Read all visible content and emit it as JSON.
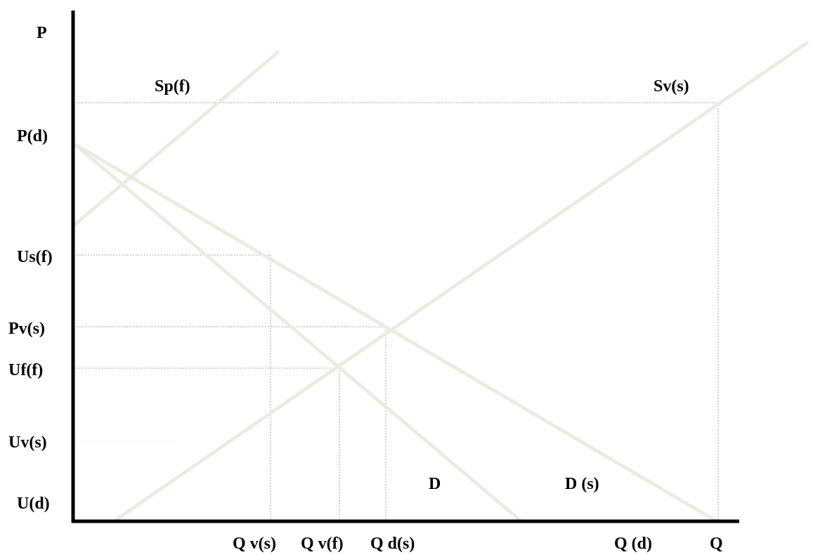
{
  "diagram": {
    "axis_labels": {
      "y": "P",
      "x": "Q"
    },
    "y_labels": [
      "P(d)",
      "Us(f)",
      "Pv(s)",
      "Uf(f)",
      "Uv(s)",
      "U(d)"
    ],
    "x_labels": [
      "Q v(s)",
      "Q v(f)",
      "Q d(s)",
      "Q (d)"
    ],
    "curve_labels": {
      "sp": "Sp(f)",
      "sv": "Sv(s)",
      "d": "D",
      "ds": "D (s)"
    },
    "colors": {
      "axis": "#000000",
      "curve": "#ecebe0",
      "guide": "#8a8a8a",
      "text": "#000000"
    }
  }
}
